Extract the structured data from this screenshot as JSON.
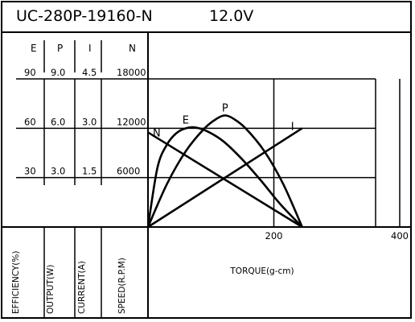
{
  "chart_data": {
    "type": "line",
    "title": "UC-280P-19160-N",
    "voltage": "12.0V",
    "xlabel": "TORQUE(g-cm)",
    "xlim": [
      0,
      400
    ],
    "x_ticks": [
      {
        "value": 200,
        "label": "200"
      },
      {
        "value": 400,
        "label": "400"
      }
    ],
    "axes": [
      {
        "key": "E",
        "header": "E",
        "label": "EFFICIENCY(%)",
        "ticks": [
          90,
          60,
          30
        ],
        "ylim": [
          0,
          90
        ]
      },
      {
        "key": "P",
        "header": "P",
        "label": "OUTPUT(W)",
        "ticks": [
          "9.0",
          "6.0",
          "3.0"
        ],
        "ylim": [
          0,
          9
        ]
      },
      {
        "key": "I",
        "header": "I",
        "label": "CURRENT(A)",
        "ticks": [
          "4.5",
          "3.0",
          "1.5"
        ],
        "ylim": [
          0,
          4.5
        ]
      },
      {
        "key": "N",
        "header": "N",
        "label": "SPEED(R.P.M)",
        "ticks": [
          18000,
          12000,
          6000
        ],
        "ylim": [
          0,
          18000
        ]
      }
    ],
    "series": [
      {
        "name": "N",
        "axis": "N",
        "x": [
          0,
          245
        ],
        "values": [
          11500,
          0
        ]
      },
      {
        "name": "I",
        "axis": "I",
        "x": [
          0,
          245
        ],
        "values": [
          0,
          3.0
        ]
      },
      {
        "name": "P",
        "axis": "P",
        "x": [
          0,
          30,
          60,
          90,
          110,
          122.5,
          135,
          155,
          185,
          215,
          245
        ],
        "values": [
          0,
          2.6,
          4.6,
          6.0,
          6.6,
          6.78,
          6.6,
          6.0,
          4.6,
          2.6,
          0
        ]
      },
      {
        "name": "E",
        "axis": "E",
        "x": [
          0,
          15,
          30,
          45,
          60,
          75,
          95,
          120,
          150,
          180,
          210,
          245
        ],
        "values": [
          0,
          36,
          50,
          57,
          60,
          60.5,
          58,
          52,
          41,
          28,
          14,
          0
        ]
      }
    ]
  }
}
